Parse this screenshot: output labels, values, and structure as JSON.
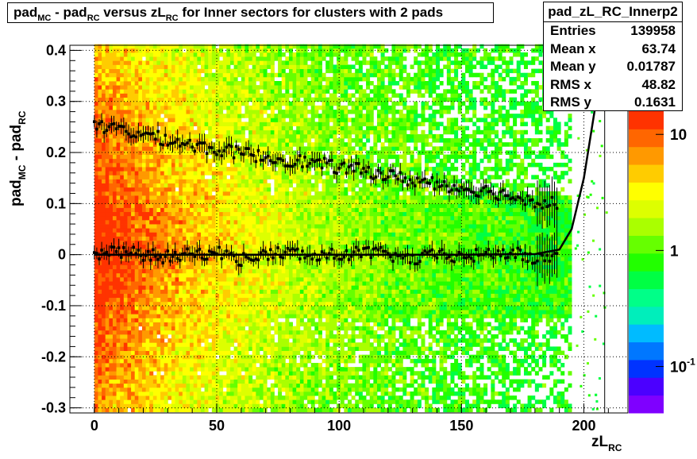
{
  "title": {
    "prefix": "pad",
    "sub1": "MC",
    "middle": " - pad",
    "sub2": "RC",
    "middle2": " versus zL",
    "sub3": "RC",
    "suffix": " for Inner sectors for clusters with 2 pads"
  },
  "stats": {
    "name": "pad_zL_RC_Innerp2",
    "rows": [
      {
        "key": "Entries",
        "value": "139958"
      },
      {
        "key": "Mean x",
        "value": "63.74"
      },
      {
        "key": "Mean y",
        "value": "0.01787"
      },
      {
        "key": "RMS x",
        "value": "48.82"
      },
      {
        "key": "RMS y",
        "value": "0.1631"
      }
    ]
  },
  "axes": {
    "ylabel_main": "pad",
    "ylabel_sub1": "MC",
    "ylabel_mid": " - pad",
    "ylabel_sub2": "RC",
    "xlabel_main": "zL",
    "xlabel_sub": "RC"
  },
  "colors": {
    "palette": [
      "#7f00ff",
      "#4b00ff",
      "#0033ff",
      "#0077ff",
      "#00bbff",
      "#00eebb",
      "#00ff88",
      "#00ff44",
      "#22ff00",
      "#66ff00",
      "#aaff00",
      "#ddff00",
      "#ffff00",
      "#ffcc00",
      "#ff9900",
      "#ff6600",
      "#ff3300"
    ],
    "grid": "#000000",
    "marker": "#000000"
  },
  "chart_data": {
    "type": "heatmap",
    "title": "pad_MC - pad_RC versus zL_RC for Inner sectors for clusters with 2 pads",
    "xlabel": "zL_RC",
    "ylabel": "pad_MC - pad_RC",
    "xlim": [
      -10,
      218
    ],
    "ylim": [
      -0.31,
      0.41
    ],
    "xticks": [
      0,
      50,
      100,
      150,
      200
    ],
    "xtick_labels": [
      "0",
      "50",
      "100",
      "150",
      "200"
    ],
    "yticks": [
      -0.3,
      -0.2,
      -0.1,
      0,
      0.1,
      0.2,
      0.3,
      0.4
    ],
    "ytick_labels": [
      "-0.3",
      "-0.2",
      "-0.1",
      "0",
      "0.1",
      "0.2",
      "0.3",
      "0.4"
    ],
    "grid": true,
    "color_scale": "log",
    "colorbar_labels": [
      {
        "label": "10",
        "exp": "",
        "value": 10
      },
      {
        "label": "1",
        "exp": "",
        "value": 1
      },
      {
        "label": "10",
        "exp": "-1",
        "value": 0.1
      }
    ],
    "data_xrange": [
      0,
      195
    ],
    "series": [
      {
        "name": "profile_upper",
        "x": [
          0,
          10,
          20,
          30,
          40,
          50,
          60,
          70,
          80,
          90,
          100,
          110,
          120,
          130,
          140,
          150,
          160,
          170,
          180,
          190
        ],
        "y": [
          0.25,
          0.245,
          0.235,
          0.225,
          0.215,
          0.205,
          0.2,
          0.19,
          0.185,
          0.18,
          0.17,
          0.165,
          0.155,
          0.145,
          0.14,
          0.13,
          0.125,
          0.115,
          0.105,
          0.1
        ]
      },
      {
        "name": "profile_mean",
        "x": [
          0,
          10,
          20,
          30,
          40,
          50,
          60,
          70,
          80,
          90,
          100,
          110,
          120,
          130,
          140,
          150,
          160,
          170,
          180,
          190
        ],
        "y": [
          0,
          0.005,
          0,
          -0.005,
          0,
          0.005,
          -0.01,
          0,
          0.005,
          -0.005,
          0,
          0.005,
          0,
          -0.01,
          0,
          -0.005,
          0,
          0.005,
          -0.01,
          0
        ]
      },
      {
        "name": "fit_line",
        "x": [
          0,
          50,
          100,
          150,
          180,
          190,
          195,
          200,
          205,
          208
        ],
        "y": [
          0,
          0,
          0,
          0,
          0.001,
          0.01,
          0.05,
          0.15,
          0.3,
          0.4
        ]
      }
    ]
  }
}
